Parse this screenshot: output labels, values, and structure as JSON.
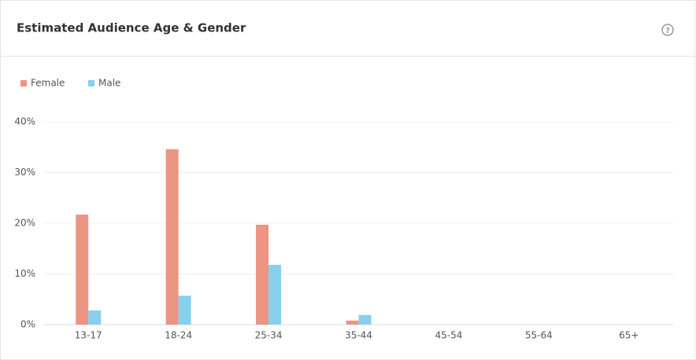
{
  "chart_data": {
    "type": "bar",
    "title": "Estimated Audience Age & Gender",
    "categories": [
      "13-17",
      "18-24",
      "25-34",
      "35-44",
      "45-54",
      "55-64",
      "65+"
    ],
    "series": [
      {
        "name": "Female",
        "color": "#ec9583",
        "values": [
          21.7,
          34.6,
          19.7,
          0.8,
          0,
          0,
          0
        ]
      },
      {
        "name": "Male",
        "color": "#86d0ec",
        "values": [
          2.8,
          5.7,
          11.8,
          1.9,
          0,
          0,
          0
        ]
      }
    ],
    "ylim": [
      0,
      40
    ],
    "yticks": [
      {
        "value": 0,
        "label": "0%"
      },
      {
        "value": 10,
        "label": "10%"
      },
      {
        "value": 20,
        "label": "20%"
      },
      {
        "value": 30,
        "label": "30%"
      },
      {
        "value": 40,
        "label": "40%"
      }
    ],
    "grid": true
  }
}
